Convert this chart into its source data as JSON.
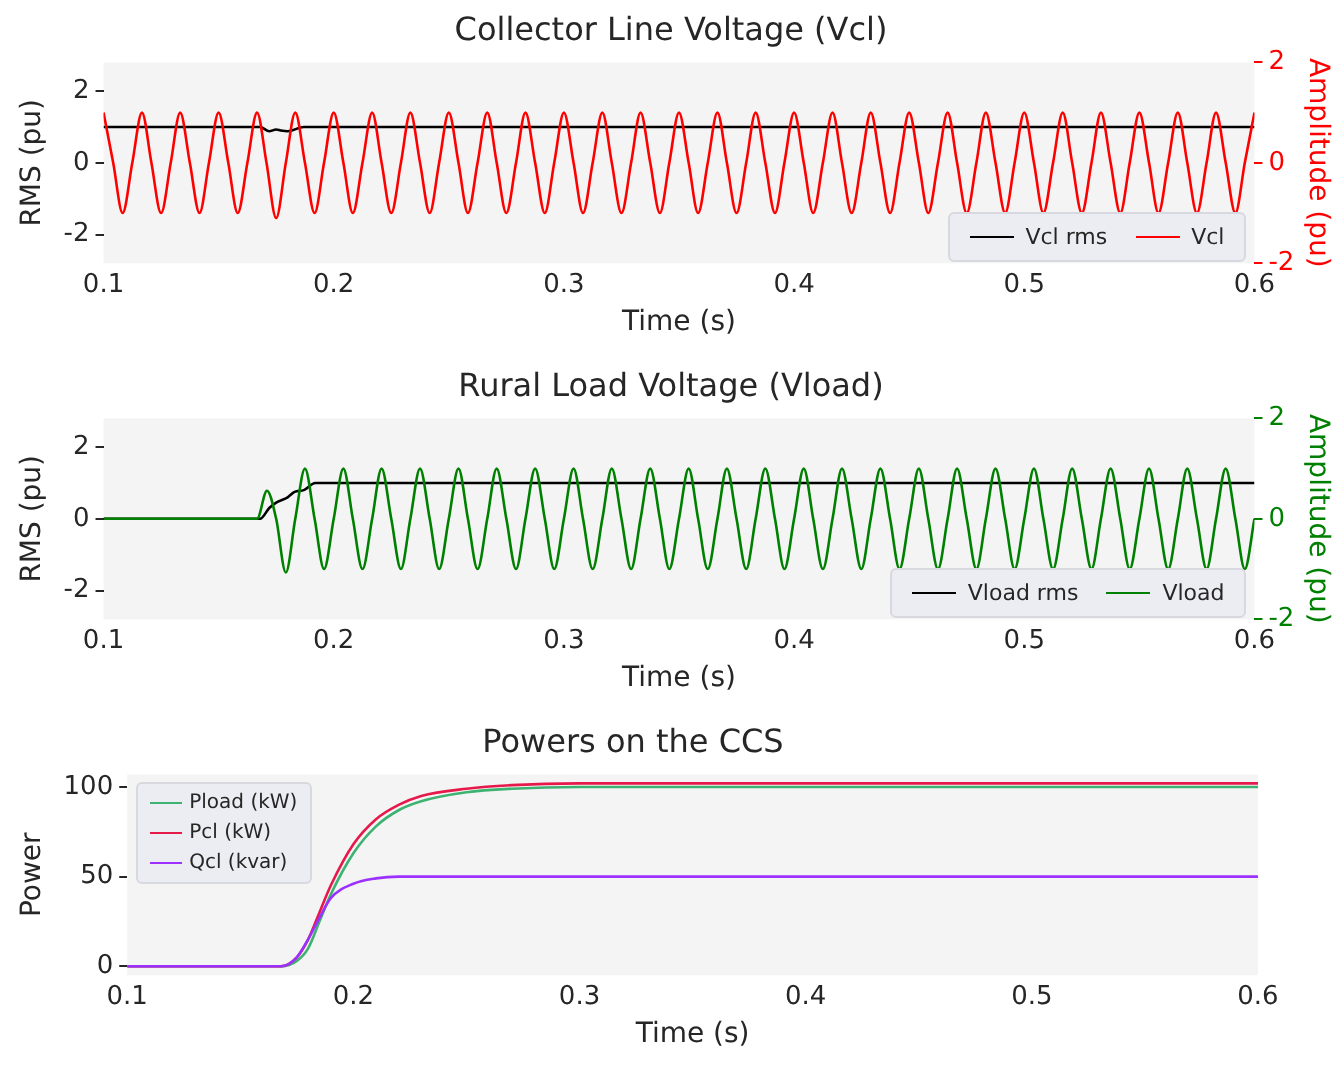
{
  "chart_data": [
    {
      "type": "line",
      "title": "Collector Line Voltage (Vcl)",
      "xlabel": "Time (s)",
      "ylabel": "RMS (pu)",
      "y2label": "Amplitude (pu)",
      "xlim": [
        0.1,
        0.6
      ],
      "xticks": [
        0.1,
        0.2,
        0.3,
        0.4,
        0.5,
        0.6
      ],
      "ylim": [
        -2.8,
        2.8
      ],
      "yticks": [
        -2,
        0,
        2
      ],
      "y2lim": [
        -2,
        2
      ],
      "y2ticks": [
        -2,
        0,
        2
      ],
      "grid": false,
      "legend": "bottom right",
      "series": [
        {
          "name": "Vcl rms",
          "color": "#000000",
          "x": [
            0.1,
            0.168,
            0.172,
            0.175,
            0.177,
            0.18,
            0.187,
            0.6
          ],
          "values": [
            1,
            1,
            0.88,
            0.93,
            0.9,
            0.88,
            1,
            1
          ]
        },
        {
          "name": "Vcl",
          "color": "#ff0000",
          "axis": "y2",
          "x": [
            0.1,
            0.1042,
            0.1083,
            0.1125,
            0.1167,
            0.1208,
            0.125,
            0.1292,
            0.1333,
            0.1375,
            0.1417,
            0.1458,
            0.15,
            0.1542,
            0.1583,
            0.1625,
            0.1667,
            0.1708,
            0.175,
            0.1792,
            0.1833,
            0.1875,
            0.1917,
            0.1958,
            0.2,
            0.2042,
            0.2083,
            0.2125,
            0.2167,
            0.2208,
            0.225,
            0.2292,
            0.2333,
            0.2375,
            0.2417,
            0.2458,
            0.25,
            0.2542,
            0.2583,
            0.2625,
            0.2667,
            0.2708,
            0.275,
            0.2792,
            0.2833,
            0.2875,
            0.2917,
            0.2958,
            0.3,
            0.3042,
            0.3083,
            0.3125,
            0.3167,
            0.3208,
            0.325,
            0.3292,
            0.3333,
            0.3375,
            0.3417,
            0.3458,
            0.35,
            0.3542,
            0.3583,
            0.3625,
            0.3667,
            0.3708,
            0.375,
            0.3792,
            0.3833,
            0.3875,
            0.3917,
            0.3958,
            0.4,
            0.4042,
            0.4083,
            0.4125,
            0.4167,
            0.4208,
            0.425,
            0.4292,
            0.4333,
            0.4375,
            0.4417,
            0.4458,
            0.45,
            0.4542,
            0.4583,
            0.4625,
            0.4667,
            0.4708,
            0.475,
            0.4792,
            0.4833,
            0.4875,
            0.4917,
            0.4958,
            0.5,
            0.5042,
            0.5083,
            0.5125,
            0.5167,
            0.5208,
            0.525,
            0.5292,
            0.5333,
            0.5375,
            0.5417,
            0.5458,
            0.55,
            0.5542,
            0.5583,
            0.5625,
            0.5667,
            0.5708,
            0.575,
            0.5792,
            0.5833,
            0.5875,
            0.5917,
            0.5958,
            0.6
          ],
          "values": [
            1,
            0,
            -1,
            0,
            1,
            0,
            -1,
            0,
            1,
            0,
            -1,
            0,
            1,
            0,
            -1,
            0,
            1,
            0,
            -1.1,
            0,
            1,
            0,
            -1,
            0,
            1,
            0,
            -1,
            0,
            1,
            0,
            -1,
            0,
            1,
            0,
            -1,
            0,
            1,
            0,
            -1,
            0,
            1,
            0,
            -1,
            0,
            1,
            0,
            -1,
            0,
            1,
            0,
            -1,
            0,
            1,
            0,
            -1,
            0,
            1,
            0,
            -1,
            0,
            1,
            0,
            -1,
            0,
            1,
            0,
            -1,
            0,
            1,
            0,
            -1,
            0,
            1,
            0,
            -1,
            0,
            1,
            0,
            -1,
            0,
            1,
            0,
            -1,
            0,
            1,
            0,
            -1,
            0,
            1,
            0,
            -1,
            0,
            1,
            0,
            -1,
            0,
            1,
            0,
            -1,
            0,
            1,
            0,
            -1,
            0,
            1,
            0,
            -1,
            0,
            1,
            0,
            -1,
            0,
            1,
            0,
            -1,
            0,
            1,
            0,
            -1,
            0,
            1
          ]
        }
      ]
    },
    {
      "type": "line",
      "title": "Rural Load Voltage (Vload)",
      "xlabel": "Time (s)",
      "ylabel": "RMS (pu)",
      "y2label": "Amplitude (pu)",
      "xlim": [
        0.1,
        0.6
      ],
      "xticks": [
        0.1,
        0.2,
        0.3,
        0.4,
        0.5,
        0.6
      ],
      "ylim": [
        -2.8,
        2.8
      ],
      "yticks": [
        -2,
        0,
        2
      ],
      "y2lim": [
        -2,
        2
      ],
      "y2ticks": [
        -2,
        0,
        2
      ],
      "grid": false,
      "legend": "bottom right",
      "series": [
        {
          "name": "Vload rms",
          "color": "#000000",
          "x": [
            0.1,
            0.168,
            0.172,
            0.175,
            0.18,
            0.183,
            0.187,
            0.192,
            0.6
          ],
          "values": [
            0,
            0,
            0.3,
            0.45,
            0.6,
            0.75,
            0.8,
            1,
            1
          ]
        },
        {
          "name": "Vload",
          "color": "#008000",
          "axis": "y2",
          "x": [
            0.1,
            0.1667,
            0.171,
            0.175,
            0.1792,
            0.1833,
            0.1875,
            0.1917,
            0.1958,
            0.2,
            0.2042,
            0.2083,
            0.2125,
            0.2167,
            0.2208,
            0.225,
            0.2292,
            0.2333,
            0.2375,
            0.2417,
            0.2458,
            0.25,
            0.2542,
            0.2583,
            0.2625,
            0.2667,
            0.2708,
            0.275,
            0.2792,
            0.2833,
            0.2875,
            0.2917,
            0.2958,
            0.3,
            0.3042,
            0.3083,
            0.3125,
            0.3167,
            0.3208,
            0.325,
            0.3292,
            0.3333,
            0.3375,
            0.3417,
            0.3458,
            0.35,
            0.3542,
            0.3583,
            0.3625,
            0.3667,
            0.3708,
            0.375,
            0.3792,
            0.3833,
            0.3875,
            0.3917,
            0.3958,
            0.4,
            0.4042,
            0.4083,
            0.4125,
            0.4167,
            0.4208,
            0.425,
            0.4292,
            0.4333,
            0.4375,
            0.4417,
            0.4458,
            0.45,
            0.4542,
            0.4583,
            0.4625,
            0.4667,
            0.4708,
            0.475,
            0.4792,
            0.4833,
            0.4875,
            0.4917,
            0.4958,
            0.5,
            0.5042,
            0.5083,
            0.5125,
            0.5167,
            0.5208,
            0.525,
            0.5292,
            0.5333,
            0.5375,
            0.5417,
            0.5458,
            0.55,
            0.5542,
            0.5583,
            0.5625,
            0.5667,
            0.5708,
            0.575,
            0.5792,
            0.5833,
            0.5875,
            0.5917,
            0.5958,
            0.6
          ],
          "values": [
            0,
            0,
            0.56,
            0,
            -1.07,
            0,
            1,
            0,
            -1,
            0,
            1,
            0,
            -1,
            0,
            1,
            0,
            -1,
            0,
            1,
            0,
            -1,
            0,
            1,
            0,
            -1,
            0,
            1,
            0,
            -1,
            0,
            1,
            0,
            -1,
            0,
            1,
            0,
            -1,
            0,
            1,
            0,
            -1,
            0,
            1,
            0,
            -1,
            0,
            1,
            0,
            -1,
            0,
            1,
            0,
            -1,
            0,
            1,
            0,
            -1,
            0,
            1,
            0,
            -1,
            0,
            1,
            0,
            -1,
            0,
            1,
            0,
            -1,
            0,
            1,
            0,
            -1,
            0,
            1,
            0,
            -1,
            0,
            1,
            0,
            -1,
            0,
            1,
            0,
            -1,
            0,
            1,
            0,
            -1,
            0,
            1,
            0,
            -1,
            0,
            1,
            0,
            -1,
            0,
            1,
            0,
            -1,
            0,
            1,
            0,
            -1,
            0
          ]
        }
      ]
    },
    {
      "type": "line",
      "title": "Powers on the CCS",
      "xlabel": "Time (s)",
      "ylabel": "Power",
      "xlim": [
        0.1,
        0.6
      ],
      "xticks": [
        0.1,
        0.2,
        0.3,
        0.4,
        0.5,
        0.6
      ],
      "ylim": [
        -5,
        107
      ],
      "yticks": [
        0,
        50,
        100
      ],
      "grid": false,
      "legend": "top left",
      "series": [
        {
          "name": "Pload (kW)",
          "color": "#3cb371",
          "x": [
            0.1,
            0.168,
            0.175,
            0.18,
            0.185,
            0.19,
            0.2,
            0.21,
            0.22,
            0.23,
            0.25,
            0.27,
            0.3,
            0.35,
            0.6
          ],
          "values": [
            0,
            0,
            3,
            10,
            25,
            40,
            63,
            78,
            87,
            92,
            97,
            99,
            100,
            100,
            100
          ]
        },
        {
          "name": "Pcl (kW)",
          "color": "#e6194b",
          "x": [
            0.1,
            0.168,
            0.175,
            0.18,
            0.185,
            0.19,
            0.2,
            0.21,
            0.22,
            0.23,
            0.25,
            0.27,
            0.3,
            0.35,
            0.6
          ],
          "values": [
            0,
            0,
            5,
            15,
            30,
            45,
            68,
            82,
            90,
            95,
            99,
            101,
            102,
            102,
            102
          ]
        },
        {
          "name": "Qcl (kvar)",
          "color": "#9b30ff",
          "x": [
            0.1,
            0.168,
            0.175,
            0.18,
            0.185,
            0.19,
            0.2,
            0.21,
            0.22,
            0.23,
            0.25,
            0.27,
            0.3,
            0.35,
            0.6
          ],
          "values": [
            0,
            0,
            5,
            15,
            27,
            38,
            46,
            49,
            50,
            50,
            50,
            50,
            50,
            50,
            50
          ]
        }
      ]
    }
  ]
}
